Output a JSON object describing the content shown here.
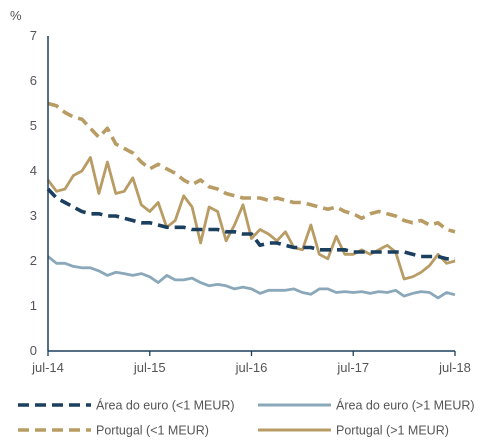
{
  "chart_data": {
    "type": "line",
    "unit": "%",
    "ylim": [
      0,
      7
    ],
    "y_ticks": [
      "0",
      "1",
      "2",
      "3",
      "4",
      "5",
      "6",
      "7"
    ],
    "x_ticks": [
      "jul-14",
      "jul-15",
      "jul-16",
      "jul-17",
      "jul-18"
    ],
    "x_range_months": [
      0,
      48
    ],
    "grid": false,
    "legend_position": "bottom",
    "series": [
      {
        "name": "Área do euro (<1 MEUR)",
        "color": "#1b3f5e",
        "style": "dashed",
        "values": [
          3.6,
          3.4,
          3.3,
          3.2,
          3.1,
          3.05,
          3.05,
          3.0,
          3.0,
          2.95,
          2.9,
          2.85,
          2.85,
          2.8,
          2.75,
          2.75,
          2.75,
          2.7,
          2.7,
          2.7,
          2.7,
          2.65,
          2.65,
          2.6,
          2.6,
          2.35,
          2.4,
          2.4,
          2.35,
          2.3,
          2.3,
          2.3,
          2.25,
          2.25,
          2.25,
          2.25,
          2.2,
          2.2,
          2.2,
          2.2,
          2.2,
          2.2,
          2.2,
          2.15,
          2.1,
          2.1,
          2.1,
          2.05,
          2.05
        ]
      },
      {
        "name": "Área do euro (>1 MEUR)",
        "color": "#8aa8ba",
        "style": "solid",
        "values": [
          2.1,
          1.95,
          1.95,
          1.88,
          1.85,
          1.85,
          1.78,
          1.68,
          1.75,
          1.72,
          1.68,
          1.72,
          1.65,
          1.52,
          1.68,
          1.58,
          1.58,
          1.62,
          1.52,
          1.45,
          1.48,
          1.45,
          1.38,
          1.42,
          1.38,
          1.28,
          1.35,
          1.35,
          1.35,
          1.38,
          1.3,
          1.26,
          1.38,
          1.38,
          1.3,
          1.32,
          1.3,
          1.32,
          1.28,
          1.32,
          1.3,
          1.35,
          1.22,
          1.28,
          1.32,
          1.3,
          1.18,
          1.3,
          1.25
        ]
      },
      {
        "name": "Portugal (<1 MEUR)",
        "color": "#b89c64",
        "style": "dashed",
        "values": [
          5.5,
          5.45,
          5.3,
          5.2,
          5.15,
          4.95,
          4.75,
          4.95,
          4.6,
          4.5,
          4.4,
          4.2,
          4.05,
          4.15,
          4.05,
          3.95,
          3.8,
          3.7,
          3.8,
          3.65,
          3.6,
          3.5,
          3.45,
          3.4,
          3.4,
          3.4,
          3.35,
          3.4,
          3.35,
          3.3,
          3.3,
          3.25,
          3.2,
          3.15,
          3.2,
          3.1,
          3.05,
          2.95,
          3.05,
          3.1,
          3.05,
          3.0,
          2.9,
          2.85,
          2.9,
          2.8,
          2.85,
          2.7,
          2.65
        ]
      },
      {
        "name": "Portugal (>1 MEUR)",
        "color": "#b89c64",
        "style": "solid",
        "values": [
          3.8,
          3.55,
          3.6,
          3.9,
          4.0,
          4.3,
          3.5,
          4.2,
          3.5,
          3.55,
          3.85,
          3.25,
          3.1,
          3.3,
          2.75,
          2.9,
          3.45,
          3.2,
          2.4,
          3.2,
          3.1,
          2.45,
          2.8,
          3.25,
          2.5,
          2.7,
          2.6,
          2.45,
          2.65,
          2.3,
          2.25,
          2.8,
          2.15,
          2.05,
          2.55,
          2.15,
          2.15,
          2.25,
          2.15,
          2.25,
          2.35,
          2.2,
          1.6,
          1.65,
          1.75,
          1.9,
          2.15,
          1.95,
          2.0
        ]
      }
    ]
  }
}
